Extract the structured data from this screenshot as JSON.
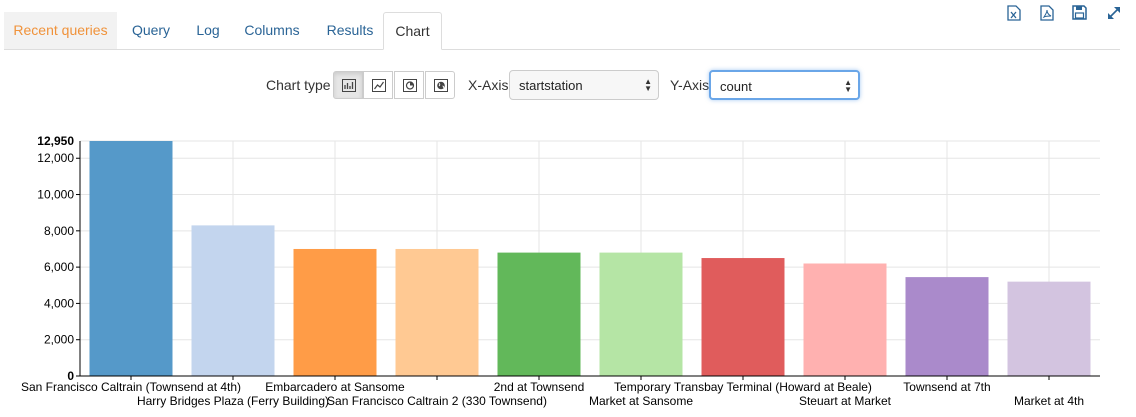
{
  "tabs": [
    "Recent queries",
    "Query",
    "Log",
    "Columns",
    "Results",
    "Chart"
  ],
  "toolbar_icons": [
    "excel-export-icon",
    "pdf-export-icon",
    "save-icon",
    "expand-icon"
  ],
  "controls": {
    "chart_type_label": "Chart type",
    "chart_types": [
      "bar-chart-icon",
      "line-chart-icon",
      "pie-chart-icon",
      "map-icon"
    ],
    "active_chart_type": "bar-chart-icon",
    "x_axis_label": "X-Axis",
    "x_axis_value": "startstation",
    "y_axis_label": "Y-Axis",
    "y_axis_value": "count"
  },
  "chart_data": {
    "type": "bar",
    "categories": [
      "San Francisco Caltrain (Townsend at 4th)",
      "Harry Bridges Plaza (Ferry Building)",
      "Embarcadero at Sansome",
      "San Francisco Caltrain 2 (330 Townsend)",
      "2nd at Townsend",
      "Market at Sansome",
      "Temporary Transbay Terminal (Howard at Beale)",
      "Steuart at Market",
      "Townsend at 7th",
      "Market at 4th"
    ],
    "values": [
      12950,
      8300,
      7000,
      7000,
      6800,
      6800,
      6500,
      6200,
      5450,
      5200
    ],
    "colors": [
      "#5599c9",
      "#c3d5ee",
      "#ff9c47",
      "#ffc993",
      "#62b85a",
      "#b5e5a5",
      "#e05c5c",
      "#ffb1b0",
      "#aa8acb",
      "#d3c4e0"
    ],
    "yticks": [
      0,
      2000,
      4000,
      6000,
      8000,
      10000,
      12000
    ],
    "ytick_labels": [
      "0",
      "2,000",
      "4,000",
      "6,000",
      "8,000",
      "10,000",
      "12,000"
    ],
    "ymax_label": "12,950",
    "ylim": [
      0,
      12950
    ],
    "grid": true
  }
}
